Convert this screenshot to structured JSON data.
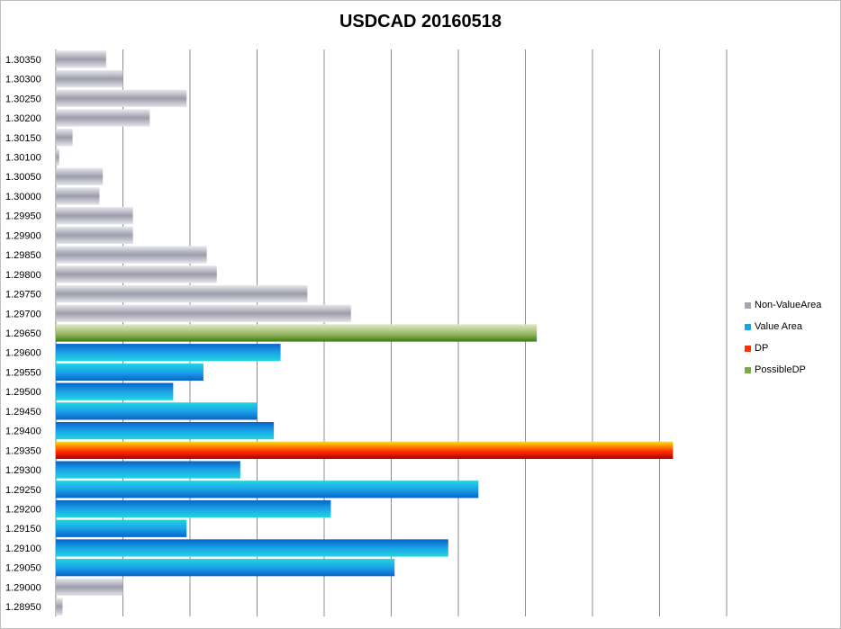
{
  "chart_data": {
    "type": "bar",
    "orientation": "horizontal",
    "title": "USDCAD 20160518",
    "xlabel": "",
    "ylabel": "",
    "xlim": [
      0,
      1000
    ],
    "grid": true,
    "legend_position": "right",
    "categories": [
      "1.30350",
      "1.30300",
      "1.30250",
      "1.30200",
      "1.30150",
      "1.30100",
      "1.30050",
      "1.30000",
      "1.29950",
      "1.29900",
      "1.29850",
      "1.29800",
      "1.29750",
      "1.29700",
      "1.29650",
      "1.29600",
      "1.29550",
      "1.29500",
      "1.29450",
      "1.29400",
      "1.29350",
      "1.29300",
      "1.29250",
      "1.29200",
      "1.29150",
      "1.29100",
      "1.29050",
      "1.29000",
      "1.28950"
    ],
    "values": [
      75,
      100,
      195,
      140,
      25,
      5,
      70,
      65,
      115,
      115,
      225,
      240,
      375,
      440,
      717,
      335,
      220,
      175,
      300,
      325,
      920,
      275,
      630,
      410,
      195,
      585,
      505,
      100,
      10
    ],
    "bar_series": [
      "Non-ValueArea",
      "Non-ValueArea",
      "Non-ValueArea",
      "Non-ValueArea",
      "Non-ValueArea",
      "Non-ValueArea",
      "Non-ValueArea",
      "Non-ValueArea",
      "Non-ValueArea",
      "Non-ValueArea",
      "Non-ValueArea",
      "Non-ValueArea",
      "Non-ValueArea",
      "Non-ValueArea",
      "PossibleDP",
      "Value Area",
      "Value Area",
      "Value Area",
      "Value Area",
      "Value Area",
      "DP",
      "Value Area",
      "Value Area",
      "Value Area",
      "Value Area",
      "Value Area",
      "Value Area",
      "Non-ValueArea",
      "Non-ValueArea"
    ],
    "series": [
      {
        "name": "Non-ValueArea",
        "color": "#a6a6b2"
      },
      {
        "name": "Value Area",
        "color": "#1aa3e8"
      },
      {
        "name": "DP",
        "color": "#ff3300"
      },
      {
        "name": "PossibleDP",
        "color": "#7aab3c"
      }
    ]
  }
}
